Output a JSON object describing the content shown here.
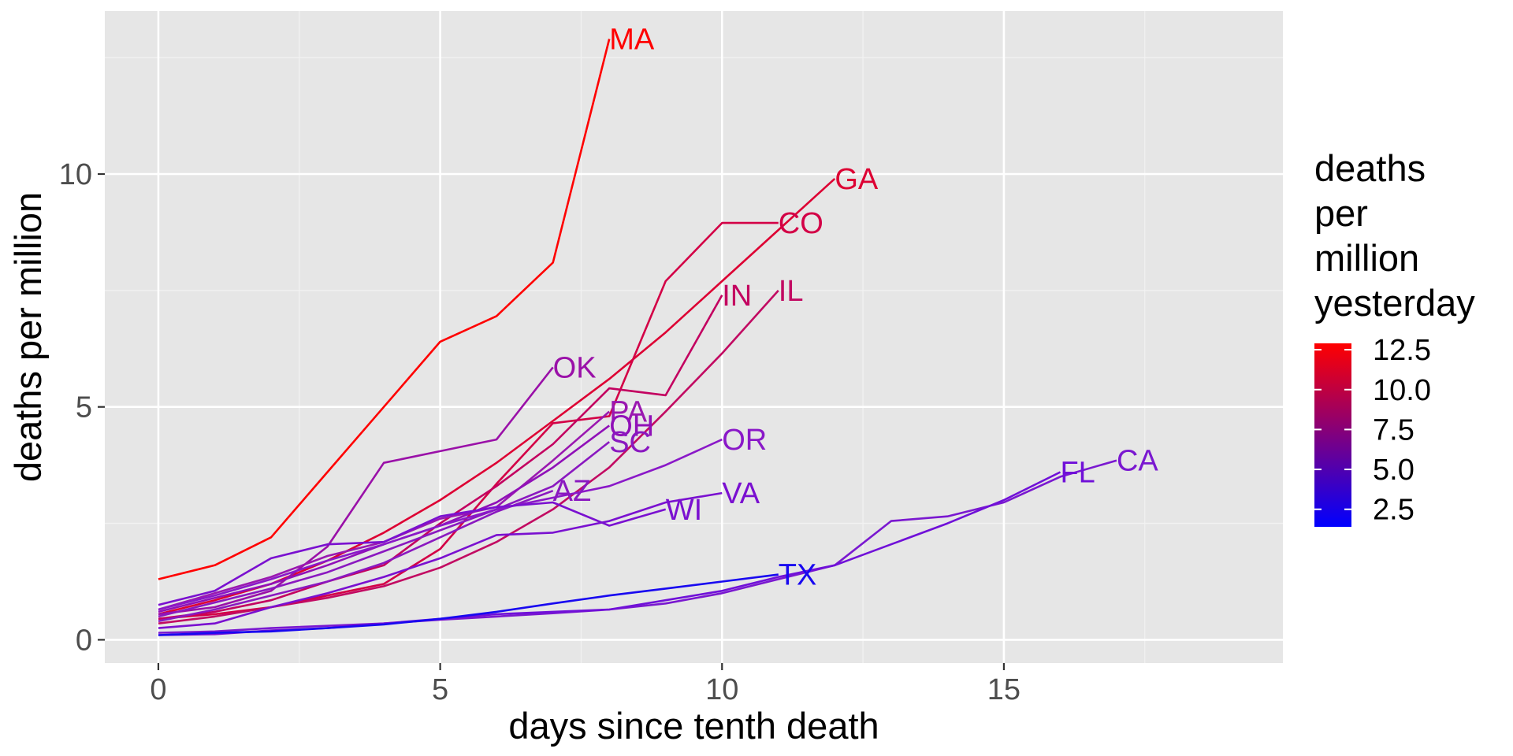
{
  "chart_data": {
    "type": "line",
    "xlabel": "days since tenth death",
    "ylabel": "deaths per million",
    "xlim": [
      -0.95,
      19.95
    ],
    "ylim": [
      -0.5,
      13.5
    ],
    "x_ticks": [
      0,
      5,
      10,
      15
    ],
    "x_tick_labels": [
      "0",
      "5",
      "10",
      "15"
    ],
    "y_ticks": [
      0,
      5,
      10
    ],
    "y_tick_labels": [
      "0",
      "5",
      "10"
    ],
    "grid": true,
    "background": "#e6e6e6",
    "legend": {
      "title_lines": [
        "deaths",
        "per",
        "million",
        "yesterday"
      ],
      "placement": "right",
      "range": [
        1.4,
        12.9
      ],
      "ticks": [
        12.5,
        10.0,
        7.5,
        5.0,
        2.5
      ],
      "tick_labels": [
        "12.5",
        "10.0",
        "7.5",
        "5.0",
        "2.5"
      ],
      "low_color": "#0000ff",
      "high_color": "#ff0000"
    },
    "series": [
      {
        "name": "MA",
        "color": "#ff0000",
        "x": [
          0,
          1,
          2,
          3,
          4,
          5,
          6,
          7,
          8
        ],
        "y": [
          1.3,
          1.6,
          2.2,
          3.6,
          5.0,
          6.4,
          6.95,
          8.1,
          12.9
        ]
      },
      {
        "name": "GA",
        "color": "#dd0033",
        "x": [
          0,
          1,
          2,
          3,
          4,
          5,
          6,
          7,
          8,
          9,
          10,
          11,
          12
        ],
        "y": [
          0.55,
          0.85,
          1.2,
          1.7,
          2.3,
          3.0,
          3.8,
          4.7,
          5.6,
          6.6,
          7.7,
          8.8,
          9.9
        ]
      },
      {
        "name": "CO",
        "color": "#d30046",
        "x": [
          0,
          1,
          2,
          3,
          4,
          5,
          6,
          7,
          8,
          9,
          10,
          11
        ],
        "y": [
          0.45,
          0.55,
          0.7,
          0.95,
          1.2,
          1.95,
          3.35,
          4.65,
          4.8,
          7.7,
          8.95,
          8.95
        ]
      },
      {
        "name": "IL",
        "color": "#c20a62",
        "x": [
          0,
          1,
          2,
          3,
          4,
          5,
          6,
          7,
          8,
          9,
          10,
          11
        ],
        "y": [
          0.35,
          0.5,
          0.7,
          0.9,
          1.15,
          1.55,
          2.1,
          2.8,
          3.7,
          4.9,
          6.15,
          7.5
        ]
      },
      {
        "name": "IN",
        "color": "#c30060",
        "x": [
          0,
          1,
          2,
          3,
          4,
          5,
          6,
          7,
          8,
          9,
          10
        ],
        "y": [
          0.45,
          0.6,
          0.85,
          1.25,
          1.6,
          2.5,
          3.3,
          4.2,
          5.4,
          5.25,
          7.4
        ]
      },
      {
        "name": "OK",
        "color": "#9a10a8",
        "x": [
          0,
          1,
          2,
          3,
          4,
          5,
          6,
          7
        ],
        "y": [
          0.55,
          0.7,
          1.05,
          2.0,
          3.8,
          4.05,
          4.3,
          5.85
        ]
      },
      {
        "name": "PA",
        "color": "#9a18b0",
        "x": [
          0,
          1,
          2,
          3,
          4,
          5,
          6,
          7,
          8
        ],
        "y": [
          0.65,
          1.0,
          1.35,
          1.8,
          2.1,
          2.6,
          2.85,
          3.85,
          4.9
        ]
      },
      {
        "name": "OH",
        "color": "#9010b8",
        "x": [
          0,
          1,
          2,
          3,
          4,
          5,
          6,
          7,
          8
        ],
        "y": [
          0.6,
          0.9,
          1.2,
          1.6,
          2.05,
          2.45,
          2.95,
          3.7,
          4.6
        ]
      },
      {
        "name": "SC",
        "color": "#8a18c0",
        "x": [
          0,
          1,
          2,
          3,
          4,
          5,
          6,
          7,
          8
        ],
        "y": [
          0.5,
          0.8,
          1.1,
          1.45,
          1.9,
          2.35,
          2.8,
          3.3,
          4.25
        ]
      },
      {
        "name": "AZ",
        "color": "#8a18c0",
        "x": [
          0,
          1,
          2,
          3,
          4,
          5,
          6,
          7
        ],
        "y": [
          0.4,
          0.65,
          0.95,
          1.25,
          1.65,
          2.2,
          2.75,
          3.2
        ]
      },
      {
        "name": "OR",
        "color": "#8a18c8",
        "x": [
          0,
          1,
          2,
          3,
          4,
          5,
          6,
          7,
          8,
          9,
          10
        ],
        "y": [
          0.65,
          0.95,
          1.3,
          1.7,
          2.05,
          2.45,
          2.8,
          3.05,
          3.3,
          3.75,
          4.3
        ]
      },
      {
        "name": "VA",
        "color": "#7a10d0",
        "x": [
          0,
          1,
          2,
          3,
          4,
          5,
          6,
          7,
          8,
          9,
          10
        ],
        "y": [
          0.25,
          0.35,
          0.7,
          1.0,
          1.35,
          1.75,
          2.25,
          2.3,
          2.55,
          2.95,
          3.15
        ]
      },
      {
        "name": "WI",
        "color": "#7a10d0",
        "x": [
          0,
          1,
          2,
          3,
          4,
          5,
          6,
          7,
          8,
          9
        ],
        "y": [
          0.75,
          1.05,
          1.75,
          2.05,
          2.1,
          2.65,
          2.85,
          2.95,
          2.45,
          2.8
        ]
      },
      {
        "name": "CA",
        "color": "#7a18d0",
        "x": [
          0,
          1,
          2,
          3,
          4,
          5,
          6,
          7,
          8,
          9,
          10,
          11,
          12,
          13,
          14,
          15,
          16,
          17
        ],
        "y": [
          0.15,
          0.18,
          0.25,
          0.3,
          0.35,
          0.43,
          0.5,
          0.57,
          0.65,
          0.78,
          1.0,
          1.3,
          1.6,
          2.55,
          2.65,
          2.95,
          3.5,
          3.85
        ]
      },
      {
        "name": "FL",
        "color": "#7010d8",
        "x": [
          0,
          1,
          2,
          3,
          4,
          5,
          6,
          7,
          8,
          9,
          10,
          11,
          12,
          13,
          14,
          15,
          16
        ],
        "y": [
          0.1,
          0.12,
          0.2,
          0.25,
          0.35,
          0.45,
          0.55,
          0.6,
          0.65,
          0.85,
          1.05,
          1.35,
          1.6,
          2.05,
          2.5,
          3.0,
          3.6
        ]
      },
      {
        "name": "TX",
        "color": "#1808f0",
        "x": [
          0,
          1,
          2,
          3,
          4,
          5,
          6,
          7,
          8,
          9,
          10,
          11
        ],
        "y": [
          0.1,
          0.15,
          0.18,
          0.25,
          0.33,
          0.45,
          0.6,
          0.78,
          0.95,
          1.1,
          1.25,
          1.4
        ]
      }
    ]
  }
}
